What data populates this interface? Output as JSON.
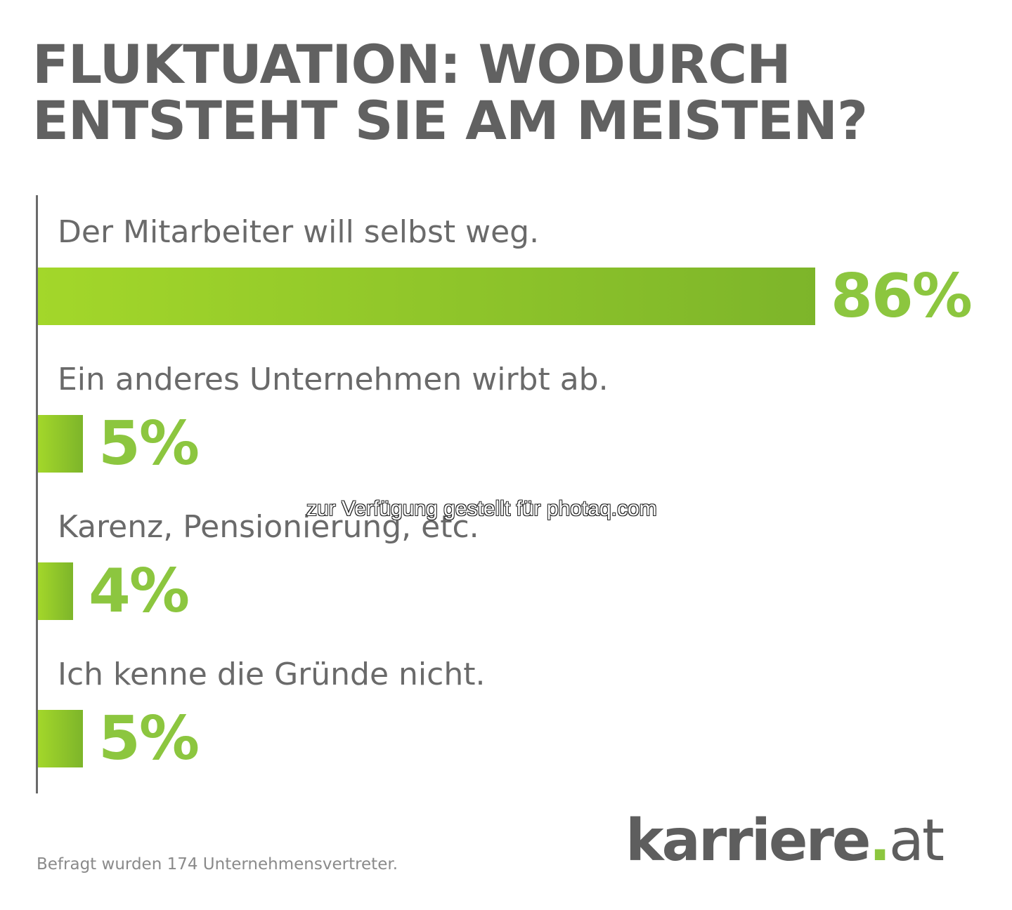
{
  "title_lines": [
    "FLUKTUATION: WODURCH",
    "ENTSTEHT SIE AM MEISTEN?"
  ],
  "colors": {
    "title": "#616161",
    "bar_start": "#a3d72a",
    "bar_end": "#7db52a",
    "value_text": "#8cc63f",
    "label_text": "#6a6a6a",
    "logo_accent": "#8cc63f"
  },
  "chart_data": {
    "type": "bar",
    "orientation": "horizontal",
    "title": "FLUKTUATION: WODURCH ENTSTEHT SIE AM MEISTEN?",
    "categories": [
      "Der Mitarbeiter will selbst weg.",
      "Ein anderes Unternehmen wirbt ab.",
      "Karenz, Pensionierung, etc.",
      "Ich kenne die Gründe nicht."
    ],
    "values": [
      86,
      5,
      4,
      5
    ],
    "value_labels": [
      "86%",
      "5%",
      "4%",
      "5%"
    ],
    "unit": "%",
    "xlim": [
      0,
      86
    ],
    "grid": false,
    "legend": "none"
  },
  "watermark": "zur Verfügung gestellt für photaq.com",
  "footnote": "Befragt wurden 174 Unternehmensvertreter.",
  "logo": {
    "brand": "karriere",
    "dot": ".",
    "tld": "at"
  }
}
